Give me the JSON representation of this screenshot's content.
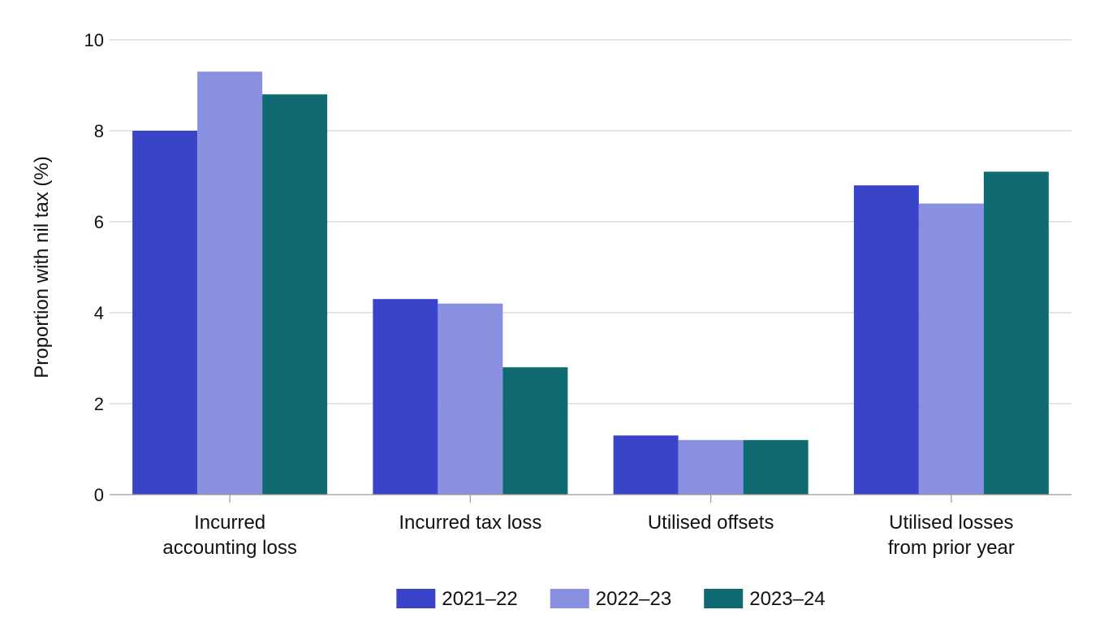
{
  "chart_data": {
    "type": "bar",
    "title": "",
    "xlabel": "",
    "ylabel": "Proportion with nil tax (%)",
    "ylim": [
      0,
      10
    ],
    "yticks": [
      0,
      2,
      4,
      6,
      8,
      10
    ],
    "grid": true,
    "legend_position": "bottom-center",
    "categories": [
      [
        "Incurred",
        "accounting loss"
      ],
      [
        "Incurred tax loss"
      ],
      [
        "Utilised offsets"
      ],
      [
        "Utilised losses",
        "from prior year"
      ]
    ],
    "series": [
      {
        "name": "2021–22",
        "color": "#3944c9",
        "values": [
          8.0,
          4.3,
          1.3,
          6.8
        ]
      },
      {
        "name": "2022–23",
        "color": "#8a90e0",
        "values": [
          9.3,
          4.2,
          1.2,
          6.4
        ]
      },
      {
        "name": "2023–24",
        "color": "#0f6a72",
        "values": [
          8.8,
          2.8,
          1.2,
          7.1
        ]
      }
    ]
  }
}
